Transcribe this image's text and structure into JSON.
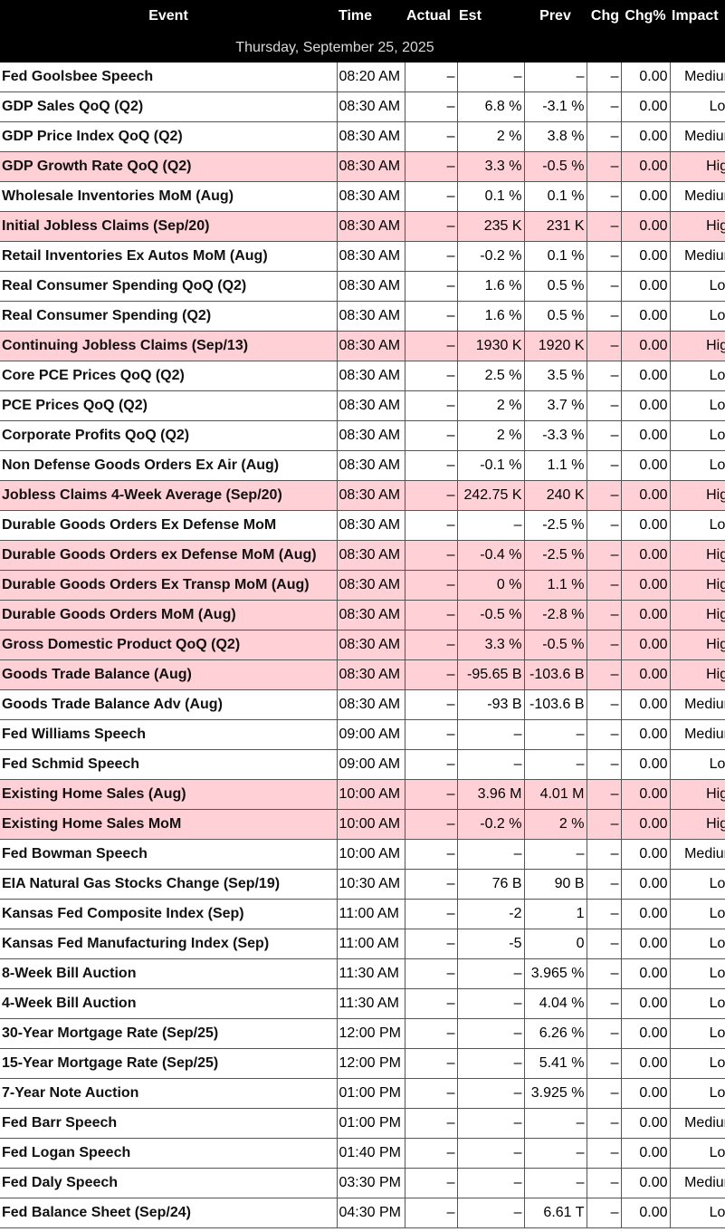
{
  "headers": {
    "event": "Event",
    "time": "Time",
    "actual": "Actual",
    "est": "Est",
    "prev": "Prev",
    "chg": "Chg",
    "chg_pct": "Chg%",
    "impact": "Impact"
  },
  "date_label": "Thursday, September 25, 2025",
  "colors": {
    "header_bg": "#000000",
    "header_text": "#ffffff",
    "high_impact_row": "#ffd1d6",
    "normal_row": "#ffffff"
  },
  "rows": [
    {
      "event": "Fed Goolsbee Speech",
      "time": "08:20 AM",
      "actual": "–",
      "est": "–",
      "prev": "–",
      "chg": "–",
      "chg_pct": "0.00",
      "impact": "Medium"
    },
    {
      "event": "GDP Sales QoQ (Q2)",
      "time": "08:30 AM",
      "actual": "–",
      "est": "6.8 %",
      "prev": "-3.1 %",
      "chg": "–",
      "chg_pct": "0.00",
      "impact": "Low"
    },
    {
      "event": "GDP Price Index QoQ (Q2)",
      "time": "08:30 AM",
      "actual": "–",
      "est": "2 %",
      "prev": "3.8 %",
      "chg": "–",
      "chg_pct": "0.00",
      "impact": "Medium"
    },
    {
      "event": "GDP Growth Rate QoQ (Q2)",
      "time": "08:30 AM",
      "actual": "–",
      "est": "3.3 %",
      "prev": "-0.5 %",
      "chg": "–",
      "chg_pct": "0.00",
      "impact": "High"
    },
    {
      "event": "Wholesale Inventories MoM (Aug)",
      "time": "08:30 AM",
      "actual": "–",
      "est": "0.1 %",
      "prev": "0.1 %",
      "chg": "–",
      "chg_pct": "0.00",
      "impact": "Medium"
    },
    {
      "event": "Initial Jobless Claims (Sep/20)",
      "time": "08:30 AM",
      "actual": "–",
      "est": "235 K",
      "prev": "231 K",
      "chg": "–",
      "chg_pct": "0.00",
      "impact": "High"
    },
    {
      "event": "Retail Inventories Ex Autos MoM (Aug)",
      "time": "08:30 AM",
      "actual": "–",
      "est": "-0.2 %",
      "prev": "0.1 %",
      "chg": "–",
      "chg_pct": "0.00",
      "impact": "Medium"
    },
    {
      "event": "Real Consumer Spending QoQ (Q2)",
      "time": "08:30 AM",
      "actual": "–",
      "est": "1.6 %",
      "prev": "0.5 %",
      "chg": "–",
      "chg_pct": "0.00",
      "impact": "Low"
    },
    {
      "event": "Real Consumer Spending (Q2)",
      "time": "08:30 AM",
      "actual": "–",
      "est": "1.6 %",
      "prev": "0.5 %",
      "chg": "–",
      "chg_pct": "0.00",
      "impact": "Low"
    },
    {
      "event": "Continuing Jobless Claims (Sep/13)",
      "time": "08:30 AM",
      "actual": "–",
      "est": "1930 K",
      "prev": "1920 K",
      "chg": "–",
      "chg_pct": "0.00",
      "impact": "High"
    },
    {
      "event": "Core PCE Prices QoQ (Q2)",
      "time": "08:30 AM",
      "actual": "–",
      "est": "2.5 %",
      "prev": "3.5 %",
      "chg": "–",
      "chg_pct": "0.00",
      "impact": "Low"
    },
    {
      "event": "PCE Prices QoQ (Q2)",
      "time": "08:30 AM",
      "actual": "–",
      "est": "2 %",
      "prev": "3.7 %",
      "chg": "–",
      "chg_pct": "0.00",
      "impact": "Low"
    },
    {
      "event": "Corporate Profits QoQ (Q2)",
      "time": "08:30 AM",
      "actual": "–",
      "est": "2 %",
      "prev": "-3.3 %",
      "chg": "–",
      "chg_pct": "0.00",
      "impact": "Low"
    },
    {
      "event": "Non Defense Goods Orders Ex Air (Aug)",
      "time": "08:30 AM",
      "actual": "–",
      "est": "-0.1 %",
      "prev": "1.1 %",
      "chg": "–",
      "chg_pct": "0.00",
      "impact": "Low"
    },
    {
      "event": "Jobless Claims 4-Week Average (Sep/20)",
      "time": "08:30 AM",
      "actual": "–",
      "est": "242.75 K",
      "prev": "240 K",
      "chg": "–",
      "chg_pct": "0.00",
      "impact": "High"
    },
    {
      "event": "Durable Goods Orders Ex Defense MoM",
      "time": "08:30 AM",
      "actual": "–",
      "est": "–",
      "prev": "-2.5 %",
      "chg": "–",
      "chg_pct": "0.00",
      "impact": "Low"
    },
    {
      "event": "Durable Goods Orders ex Defense MoM (Aug)",
      "time": "08:30 AM",
      "actual": "–",
      "est": "-0.4 %",
      "prev": "-2.5 %",
      "chg": "–",
      "chg_pct": "0.00",
      "impact": "High"
    },
    {
      "event": "Durable Goods Orders Ex Transp MoM (Aug)",
      "time": "08:30 AM",
      "actual": "–",
      "est": "0 %",
      "prev": "1.1 %",
      "chg": "–",
      "chg_pct": "0.00",
      "impact": "High"
    },
    {
      "event": "Durable Goods Orders MoM (Aug)",
      "time": "08:30 AM",
      "actual": "–",
      "est": "-0.5 %",
      "prev": "-2.8 %",
      "chg": "–",
      "chg_pct": "0.00",
      "impact": "High"
    },
    {
      "event": "Gross Domestic Product QoQ (Q2)",
      "time": "08:30 AM",
      "actual": "–",
      "est": "3.3 %",
      "prev": "-0.5 %",
      "chg": "–",
      "chg_pct": "0.00",
      "impact": "High"
    },
    {
      "event": "Goods Trade Balance (Aug)",
      "time": "08:30 AM",
      "actual": "–",
      "est": "-95.65 B",
      "prev": "-103.6 B",
      "chg": "–",
      "chg_pct": "0.00",
      "impact": "High"
    },
    {
      "event": "Goods Trade Balance Adv (Aug)",
      "time": "08:30 AM",
      "actual": "–",
      "est": "-93 B",
      "prev": "-103.6 B",
      "chg": "–",
      "chg_pct": "0.00",
      "impact": "Medium"
    },
    {
      "event": "Fed Williams Speech",
      "time": "09:00 AM",
      "actual": "–",
      "est": "–",
      "prev": "–",
      "chg": "–",
      "chg_pct": "0.00",
      "impact": "Medium"
    },
    {
      "event": "Fed Schmid Speech",
      "time": "09:00 AM",
      "actual": "–",
      "est": "–",
      "prev": "–",
      "chg": "–",
      "chg_pct": "0.00",
      "impact": "Low"
    },
    {
      "event": "Existing Home Sales (Aug)",
      "time": "10:00 AM",
      "actual": "–",
      "est": "3.96 M",
      "prev": "4.01 M",
      "chg": "–",
      "chg_pct": "0.00",
      "impact": "High"
    },
    {
      "event": "Existing Home Sales MoM",
      "time": "10:00 AM",
      "actual": "–",
      "est": "-0.2 %",
      "prev": "2 %",
      "chg": "–",
      "chg_pct": "0.00",
      "impact": "High"
    },
    {
      "event": "Fed Bowman Speech",
      "time": "10:00 AM",
      "actual": "–",
      "est": "–",
      "prev": "–",
      "chg": "–",
      "chg_pct": "0.00",
      "impact": "Medium"
    },
    {
      "event": "EIA Natural Gas Stocks Change (Sep/19)",
      "time": "10:30 AM",
      "actual": "–",
      "est": "76 B",
      "prev": "90 B",
      "chg": "–",
      "chg_pct": "0.00",
      "impact": "Low"
    },
    {
      "event": "Kansas Fed Composite Index (Sep)",
      "time": "11:00 AM",
      "actual": "–",
      "est": "-2",
      "prev": "1",
      "chg": "–",
      "chg_pct": "0.00",
      "impact": "Low"
    },
    {
      "event": "Kansas Fed Manufacturing Index (Sep)",
      "time": "11:00 AM",
      "actual": "–",
      "est": "-5",
      "prev": "0",
      "chg": "–",
      "chg_pct": "0.00",
      "impact": "Low"
    },
    {
      "event": "8-Week Bill Auction",
      "time": "11:30 AM",
      "actual": "–",
      "est": "–",
      "prev": "3.965 %",
      "chg": "–",
      "chg_pct": "0.00",
      "impact": "Low"
    },
    {
      "event": "4-Week Bill Auction",
      "time": "11:30 AM",
      "actual": "–",
      "est": "–",
      "prev": "4.04 %",
      "chg": "–",
      "chg_pct": "0.00",
      "impact": "Low"
    },
    {
      "event": "30-Year Mortgage Rate (Sep/25)",
      "time": "12:00 PM",
      "actual": "–",
      "est": "–",
      "prev": "6.26 %",
      "chg": "–",
      "chg_pct": "0.00",
      "impact": "Low"
    },
    {
      "event": "15-Year Mortgage Rate (Sep/25)",
      "time": "12:00 PM",
      "actual": "–",
      "est": "–",
      "prev": "5.41 %",
      "chg": "–",
      "chg_pct": "0.00",
      "impact": "Low"
    },
    {
      "event": "7-Year Note Auction",
      "time": "01:00 PM",
      "actual": "–",
      "est": "–",
      "prev": "3.925 %",
      "chg": "–",
      "chg_pct": "0.00",
      "impact": "Low"
    },
    {
      "event": "Fed Barr Speech",
      "time": "01:00 PM",
      "actual": "–",
      "est": "–",
      "prev": "–",
      "chg": "–",
      "chg_pct": "0.00",
      "impact": "Medium"
    },
    {
      "event": "Fed Logan Speech",
      "time": "01:40 PM",
      "actual": "–",
      "est": "–",
      "prev": "–",
      "chg": "–",
      "chg_pct": "0.00",
      "impact": "Low"
    },
    {
      "event": "Fed Daly Speech",
      "time": "03:30 PM",
      "actual": "–",
      "est": "–",
      "prev": "–",
      "chg": "–",
      "chg_pct": "0.00",
      "impact": "Medium"
    },
    {
      "event": "Fed Balance Sheet (Sep/24)",
      "time": "04:30 PM",
      "actual": "–",
      "est": "–",
      "prev": "6.61 T",
      "chg": "–",
      "chg_pct": "0.00",
      "impact": "Low"
    }
  ]
}
